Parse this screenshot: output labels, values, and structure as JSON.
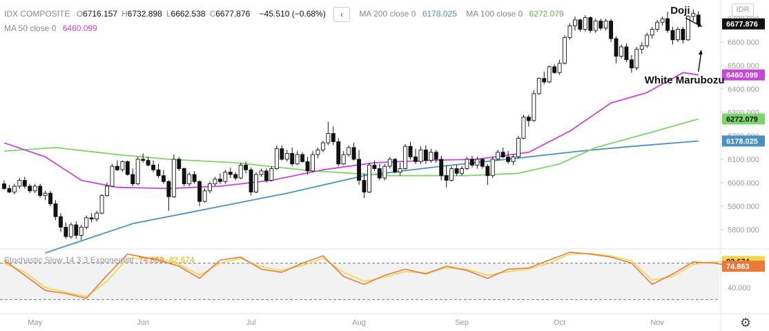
{
  "header": {
    "symbol": "IDX COMPOSITE",
    "ohlc": [
      {
        "k": "O",
        "v": "6716.157"
      },
      {
        "k": "H",
        "v": "6732.898"
      },
      {
        "k": "L",
        "v": "6662.538"
      },
      {
        "k": "C",
        "v": "6677.876"
      }
    ],
    "change": "−45.510 (−0.68%)",
    "collapse_icon": "chevron-left-icon",
    "ma": [
      {
        "label": "MA 200 close 0",
        "value": "6178.025",
        "color": "#4a90c2"
      },
      {
        "label": "MA 100 close 0",
        "value": "6272.079",
        "color": "#7dd46a"
      },
      {
        "label": "MA 50 close 0",
        "value": "6460.099",
        "color": "#c646d6"
      }
    ],
    "currency": "IDR"
  },
  "annotations": {
    "doji": "Doji",
    "white_marubozu": "White Marubozu"
  },
  "stoch": {
    "label": "Stochastic Slow 14 3 3 Exponential",
    "k_value": "74.863",
    "d_value": "82.674",
    "k_color": "#e8793a",
    "d_color": "#f2d548"
  },
  "price_axis": {
    "ticks": [
      "6700.000",
      "6600.000",
      "6500.000",
      "6400.000",
      "6300.000",
      "6200.000",
      "6100.000",
      "6000.000",
      "5900.000",
      "5800.000"
    ],
    "labels": [
      {
        "text": "6677.876",
        "value": 6677.876,
        "bg": "#111111",
        "fg": "#ffffff"
      },
      {
        "text": "6460.099",
        "value": 6460.099,
        "bg": "#c646d6",
        "fg": "#ffffff"
      },
      {
        "text": "6272.079",
        "value": 6272.079,
        "bg": "#7dd46a",
        "fg": "#111111"
      },
      {
        "text": "6178.025",
        "value": 6178.025,
        "bg": "#4a90c2",
        "fg": "#ffffff"
      }
    ]
  },
  "stoch_axis": {
    "tick": "40.000",
    "labels": [
      {
        "text": "82.674",
        "value": 82.674,
        "bg": "#f2d548",
        "fg": "#111111"
      },
      {
        "text": "74.863",
        "value": 74.863,
        "bg": "#e8793a",
        "fg": "#ffffff"
      }
    ]
  },
  "time_axis": [
    "May",
    "Jun",
    "Jul",
    "Aug",
    "Sep",
    "Oct",
    "Nov"
  ],
  "gear_icon": "gear-icon",
  "chart_data": {
    "type": "candlestick",
    "title": "IDX COMPOSITE",
    "ylim": [
      5720,
      6780
    ],
    "x_labels": [
      "May",
      "Jun",
      "Jul",
      "Aug",
      "Sep",
      "Oct",
      "Nov"
    ],
    "month_index": [
      6,
      27,
      48,
      69,
      89,
      108,
      127
    ],
    "candles": [
      [
        5995,
        6010,
        5970,
        5975
      ],
      [
        5975,
        5990,
        5955,
        5960
      ],
      [
        5960,
        5995,
        5950,
        5985
      ],
      [
        5985,
        6020,
        5975,
        6010
      ],
      [
        6010,
        6025,
        5975,
        5985
      ],
      [
        5985,
        5995,
        5955,
        5965
      ],
      [
        5965,
        5995,
        5955,
        5985
      ],
      [
        5985,
        5995,
        5935,
        5945
      ],
      [
        5945,
        5965,
        5925,
        5955
      ],
      [
        5955,
        5965,
        5900,
        5910
      ],
      [
        5910,
        5925,
        5840,
        5855
      ],
      [
        5855,
        5870,
        5790,
        5810
      ],
      [
        5810,
        5830,
        5760,
        5770
      ],
      [
        5770,
        5830,
        5760,
        5820
      ],
      [
        5820,
        5835,
        5760,
        5775
      ],
      [
        5775,
        5820,
        5755,
        5810
      ],
      [
        5810,
        5860,
        5800,
        5850
      ],
      [
        5850,
        5870,
        5830,
        5845
      ],
      [
        5845,
        5880,
        5835,
        5870
      ],
      [
        5870,
        5950,
        5865,
        5945
      ],
      [
        5945,
        6000,
        5940,
        5985
      ],
      [
        5985,
        6080,
        5980,
        6070
      ],
      [
        6070,
        6095,
        6050,
        6055
      ],
      [
        6055,
        6095,
        6045,
        6090
      ],
      [
        6090,
        6095,
        6030,
        6035
      ],
      [
        6035,
        6060,
        5985,
        5995
      ],
      [
        5995,
        6110,
        5990,
        6100
      ],
      [
        6100,
        6125,
        6085,
        6095
      ],
      [
        6095,
        6110,
        6070,
        6075
      ],
      [
        6075,
        6095,
        6045,
        6055
      ],
      [
        6055,
        6080,
        6020,
        6030
      ],
      [
        6030,
        6055,
        5995,
        6005
      ],
      [
        6005,
        6010,
        5880,
        5940
      ],
      [
        5940,
        6120,
        5935,
        6100
      ],
      [
        6100,
        6110,
        6050,
        6060
      ],
      [
        6060,
        6065,
        5985,
        5995
      ],
      [
        5995,
        6045,
        5985,
        6035
      ],
      [
        6035,
        6050,
        5995,
        6005
      ],
      [
        6005,
        6010,
        5900,
        5920
      ],
      [
        5920,
        5975,
        5915,
        5965
      ],
      [
        5965,
        6005,
        5955,
        5995
      ],
      [
        5995,
        6025,
        5985,
        6015
      ],
      [
        6015,
        6040,
        5995,
        6005
      ],
      [
        6005,
        6055,
        5995,
        6045
      ],
      [
        6045,
        6065,
        6020,
        6035
      ],
      [
        6035,
        6045,
        6010,
        6020
      ],
      [
        6020,
        6085,
        6015,
        6075
      ],
      [
        6075,
        6090,
        6040,
        6055
      ],
      [
        6055,
        6065,
        5945,
        5960
      ],
      [
        5960,
        6045,
        5955,
        6035
      ],
      [
        6035,
        6060,
        6025,
        6050
      ],
      [
        6050,
        6060,
        6000,
        6010
      ],
      [
        6010,
        6070,
        6005,
        6060
      ],
      [
        6060,
        6160,
        6055,
        6145
      ],
      [
        6145,
        6160,
        6095,
        6100
      ],
      [
        6100,
        6140,
        6090,
        6125
      ],
      [
        6125,
        6150,
        6070,
        6080
      ],
      [
        6080,
        6135,
        6075,
        6120
      ],
      [
        6120,
        6130,
        6085,
        6090
      ],
      [
        6090,
        6110,
        6035,
        6050
      ],
      [
        6050,
        6135,
        6045,
        6120
      ],
      [
        6120,
        6150,
        6105,
        6140
      ],
      [
        6140,
        6180,
        6130,
        6170
      ],
      [
        6170,
        6260,
        6160,
        6210
      ],
      [
        6210,
        6240,
        6160,
        6175
      ],
      [
        6175,
        6190,
        6070,
        6080
      ],
      [
        6080,
        6135,
        6075,
        6120
      ],
      [
        6120,
        6160,
        6110,
        6150
      ],
      [
        6150,
        6170,
        6095,
        6100
      ],
      [
        6100,
        6140,
        5990,
        6010
      ],
      [
        6010,
        6040,
        5935,
        5960
      ],
      [
        5960,
        6085,
        5955,
        6075
      ],
      [
        6075,
        6095,
        6050,
        6060
      ],
      [
        6060,
        6080,
        6010,
        6020
      ],
      [
        6020,
        6080,
        6010,
        6070
      ],
      [
        6070,
        6110,
        6060,
        6100
      ],
      [
        6100,
        6105,
        6040,
        6045
      ],
      [
        6045,
        6085,
        6030,
        6060
      ],
      [
        6060,
        6165,
        6055,
        6155
      ],
      [
        6155,
        6175,
        6100,
        6110
      ],
      [
        6110,
        6145,
        6080,
        6090
      ],
      [
        6090,
        6155,
        6080,
        6140
      ],
      [
        6140,
        6160,
        6080,
        6095
      ],
      [
        6095,
        6145,
        6085,
        6130
      ],
      [
        6130,
        6140,
        6085,
        6100
      ],
      [
        6100,
        6115,
        6010,
        6030
      ],
      [
        6030,
        6075,
        5980,
        6010
      ],
      [
        6010,
        6070,
        6005,
        6060
      ],
      [
        6060,
        6075,
        6030,
        6040
      ],
      [
        6040,
        6070,
        6030,
        6060
      ],
      [
        6060,
        6110,
        6055,
        6100
      ],
      [
        6100,
        6115,
        6065,
        6075
      ],
      [
        6075,
        6110,
        6060,
        6100
      ],
      [
        6100,
        6105,
        6060,
        6070
      ],
      [
        6070,
        6080,
        5990,
        6030
      ],
      [
        6030,
        6110,
        6020,
        6100
      ],
      [
        6100,
        6140,
        6095,
        6130
      ],
      [
        6130,
        6150,
        6105,
        6110
      ],
      [
        6110,
        6135,
        6080,
        6090
      ],
      [
        6090,
        6120,
        6075,
        6110
      ],
      [
        6110,
        6200,
        6105,
        6190
      ],
      [
        6190,
        6290,
        6185,
        6280
      ],
      [
        6280,
        6290,
        6240,
        6265
      ],
      [
        6265,
        6395,
        6260,
        6380
      ],
      [
        6380,
        6450,
        6375,
        6445
      ],
      [
        6445,
        6475,
        6420,
        6430
      ],
      [
        6430,
        6500,
        6425,
        6495
      ],
      [
        6495,
        6505,
        6465,
        6470
      ],
      [
        6470,
        6525,
        6460,
        6510
      ],
      [
        6510,
        6630,
        6505,
        6620
      ],
      [
        6620,
        6680,
        6610,
        6670
      ],
      [
        6670,
        6710,
        6650,
        6695
      ],
      [
        6695,
        6700,
        6645,
        6655
      ],
      [
        6655,
        6715,
        6645,
        6705
      ],
      [
        6705,
        6710,
        6640,
        6650
      ],
      [
        6650,
        6700,
        6640,
        6690
      ],
      [
        6690,
        6700,
        6650,
        6660
      ],
      [
        6660,
        6700,
        6650,
        6690
      ],
      [
        6690,
        6700,
        6600,
        6615
      ],
      [
        6615,
        6625,
        6510,
        6540
      ],
      [
        6540,
        6590,
        6530,
        6580
      ],
      [
        6580,
        6595,
        6515,
        6525
      ],
      [
        6525,
        6545,
        6470,
        6490
      ],
      [
        6490,
        6580,
        6480,
        6570
      ],
      [
        6570,
        6600,
        6550,
        6585
      ],
      [
        6585,
        6640,
        6575,
        6630
      ],
      [
        6630,
        6665,
        6615,
        6655
      ],
      [
        6655,
        6695,
        6645,
        6685
      ],
      [
        6685,
        6710,
        6670,
        6700
      ],
      [
        6700,
        6730,
        6640,
        6650
      ],
      [
        6650,
        6665,
        6590,
        6610
      ],
      [
        6610,
        6665,
        6600,
        6655
      ],
      [
        6655,
        6665,
        6595,
        6610
      ],
      [
        6610,
        6715,
        6605,
        6710
      ],
      [
        6710,
        6740,
        6690,
        6723
      ],
      [
        6716,
        6733,
        6663,
        6678
      ]
    ],
    "ma50_points": [
      [
        0,
        6170
      ],
      [
        8,
        6110
      ],
      [
        15,
        6010
      ],
      [
        22,
        5980
      ],
      [
        32,
        5975
      ],
      [
        42,
        5985
      ],
      [
        52,
        6010
      ],
      [
        62,
        6055
      ],
      [
        72,
        6085
      ],
      [
        82,
        6095
      ],
      [
        92,
        6100
      ],
      [
        102,
        6130
      ],
      [
        110,
        6220
      ],
      [
        118,
        6340
      ],
      [
        125,
        6385
      ],
      [
        132,
        6470
      ],
      [
        135,
        6460
      ]
    ],
    "ma100_points": [
      [
        0,
        6135
      ],
      [
        10,
        6150
      ],
      [
        22,
        6120
      ],
      [
        32,
        6100
      ],
      [
        45,
        6085
      ],
      [
        60,
        6050
      ],
      [
        75,
        6030
      ],
      [
        90,
        6030
      ],
      [
        100,
        6040
      ],
      [
        108,
        6080
      ],
      [
        115,
        6150
      ],
      [
        125,
        6210
      ],
      [
        135,
        6272
      ]
    ],
    "ma200_points": [
      [
        8,
        5700
      ],
      [
        25,
        5825
      ],
      [
        40,
        5890
      ],
      [
        55,
        5955
      ],
      [
        70,
        6030
      ],
      [
        85,
        6070
      ],
      [
        100,
        6105
      ],
      [
        112,
        6135
      ],
      [
        122,
        6155
      ],
      [
        135,
        6178
      ]
    ],
    "stoch_ylim": [
      0,
      100
    ],
    "stoch_k_points": [
      [
        0,
        85
      ],
      [
        4,
        60
      ],
      [
        8,
        35
      ],
      [
        12,
        30
      ],
      [
        16,
        22
      ],
      [
        20,
        60
      ],
      [
        24,
        95
      ],
      [
        30,
        85
      ],
      [
        34,
        75
      ],
      [
        38,
        55
      ],
      [
        42,
        85
      ],
      [
        46,
        90
      ],
      [
        50,
        70
      ],
      [
        54,
        65
      ],
      [
        58,
        80
      ],
      [
        62,
        92
      ],
      [
        66,
        58
      ],
      [
        70,
        45
      ],
      [
        74,
        60
      ],
      [
        78,
        70
      ],
      [
        82,
        62
      ],
      [
        86,
        75
      ],
      [
        90,
        68
      ],
      [
        94,
        55
      ],
      [
        98,
        70
      ],
      [
        102,
        72
      ],
      [
        106,
        85
      ],
      [
        110,
        98
      ],
      [
        114,
        95
      ],
      [
        118,
        90
      ],
      [
        122,
        80
      ],
      [
        126,
        45
      ],
      [
        130,
        62
      ],
      [
        134,
        82
      ],
      [
        138,
        80
      ],
      [
        142,
        75
      ]
    ],
    "stoch_d_points": [
      [
        0,
        80
      ],
      [
        4,
        65
      ],
      [
        8,
        40
      ],
      [
        12,
        32
      ],
      [
        16,
        25
      ],
      [
        20,
        50
      ],
      [
        24,
        88
      ],
      [
        30,
        88
      ],
      [
        34,
        78
      ],
      [
        38,
        60
      ],
      [
        42,
        80
      ],
      [
        46,
        88
      ],
      [
        50,
        74
      ],
      [
        54,
        68
      ],
      [
        58,
        76
      ],
      [
        62,
        88
      ],
      [
        66,
        65
      ],
      [
        70,
        50
      ],
      [
        74,
        57
      ],
      [
        78,
        66
      ],
      [
        82,
        64
      ],
      [
        86,
        72
      ],
      [
        90,
        70
      ],
      [
        94,
        60
      ],
      [
        98,
        66
      ],
      [
        102,
        70
      ],
      [
        106,
        80
      ],
      [
        110,
        95
      ],
      [
        114,
        96
      ],
      [
        118,
        92
      ],
      [
        122,
        84
      ],
      [
        126,
        52
      ],
      [
        130,
        58
      ],
      [
        134,
        78
      ],
      [
        138,
        82
      ],
      [
        142,
        82.674
      ]
    ],
    "stoch_bands": [
      80,
      20
    ],
    "marked_candles": {
      "doji": 136,
      "white_marubozu": 135
    }
  }
}
